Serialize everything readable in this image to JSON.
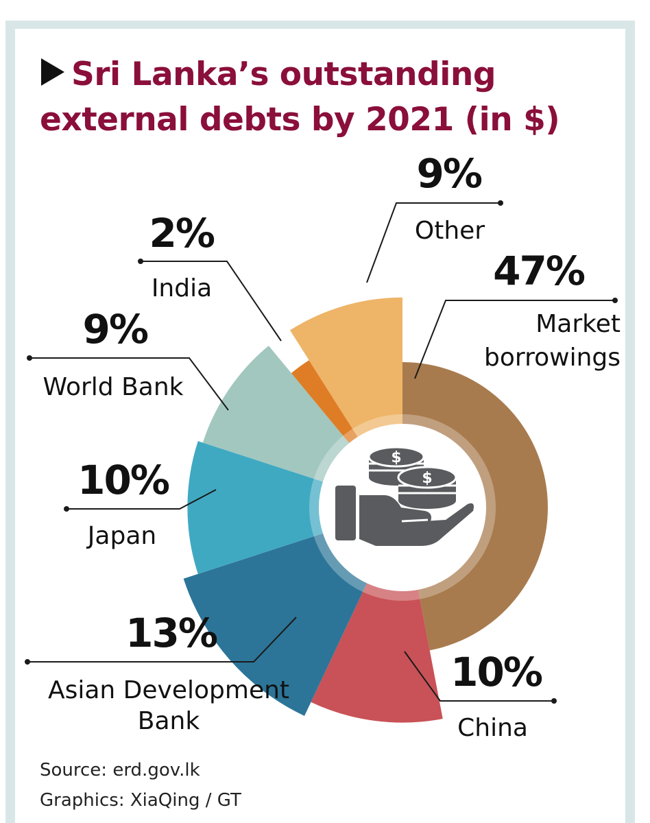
{
  "title": {
    "line1": "Sri Lanka’s outstanding",
    "line2": "external debts by 2021 (in $)",
    "marker_icon": "triangle-right-icon"
  },
  "chart_data": {
    "type": "pie",
    "variant": "rose-donut",
    "unit": "%",
    "center_icon": "hand-coins-icon",
    "slices": [
      {
        "name": "Market borrowings",
        "label_lines": [
          "Market",
          "borrowings"
        ],
        "value": 47,
        "value_label": "47%",
        "color": "#a87b4e"
      },
      {
        "name": "China",
        "label_lines": [
          "China"
        ],
        "value": 10,
        "value_label": "10%",
        "color": "#c85257"
      },
      {
        "name": "Asian Development Bank",
        "label_lines": [
          "Asian Development",
          "Bank"
        ],
        "value": 13,
        "value_label": "13%",
        "color": "#2c7598"
      },
      {
        "name": "Japan",
        "label_lines": [
          "Japan"
        ],
        "value": 10,
        "value_label": "10%",
        "color": "#40a9c2"
      },
      {
        "name": "World Bank",
        "label_lines": [
          "World Bank"
        ],
        "value": 9,
        "value_label": "9%",
        "color": "#a2c7bf"
      },
      {
        "name": "India",
        "label_lines": [
          "India"
        ],
        "value": 2,
        "value_label": "2%",
        "color": "#de7d25"
      },
      {
        "name": "Other",
        "label_lines": [
          "Other"
        ],
        "value": 9,
        "value_label": "9%",
        "color": "#eeb468"
      }
    ]
  },
  "footer": {
    "source": "Source: erd.gov.lk",
    "graphics": "Graphics: XiaQing / GT"
  }
}
